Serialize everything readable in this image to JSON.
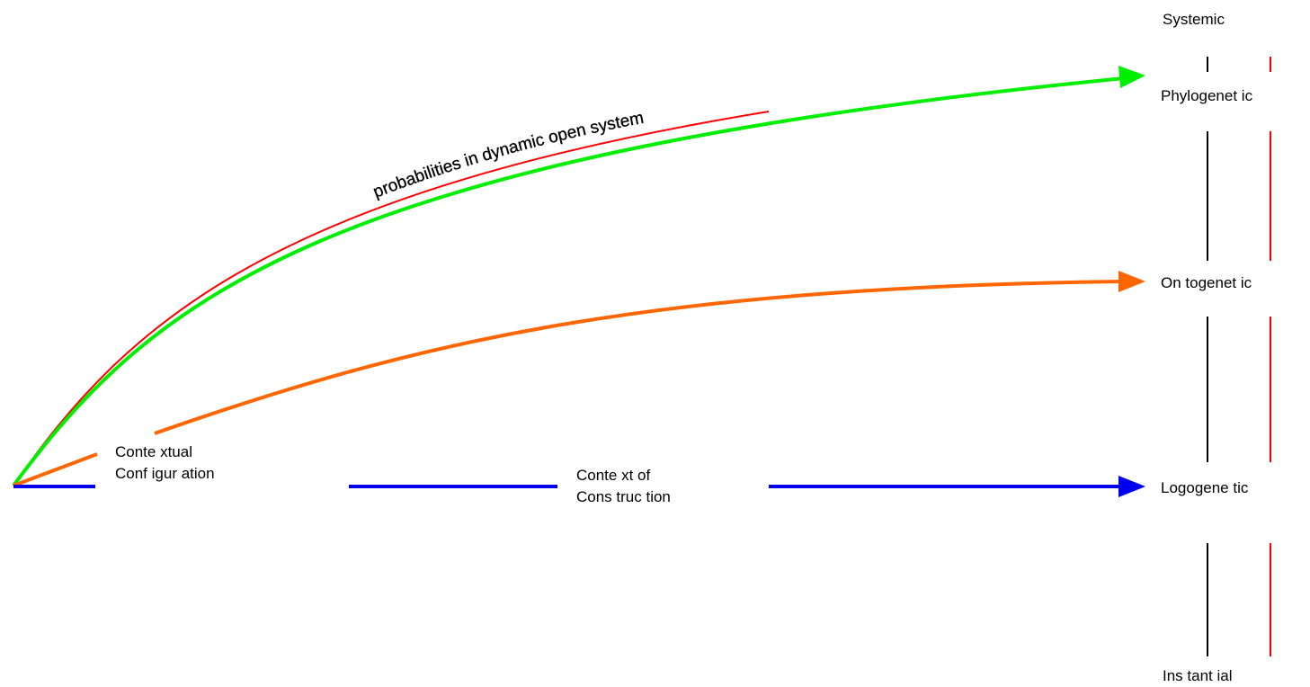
{
  "scale": {
    "top": "Systemic",
    "phylogenetic": "Phylogenet ic",
    "ontogenetic": "On togenet ic",
    "logogenetic": "Logogene  tic",
    "bottom": "Ins tant ial"
  },
  "labels": {
    "contextual_line1": "Conte xtual",
    "contextual_line2": "Conf igur ation",
    "construction_line1": "Conte xt of",
    "construction_line2": "Cons truc tion",
    "curve_text": "probabilities in dynamic open system"
  },
  "colors": {
    "phylogenetic_arrow": "#00ee00",
    "ontogenetic_arrow": "#ff6600",
    "logogenetic_arrow": "#0000ee",
    "outline": "#ff0000",
    "scale_line": "#000000"
  }
}
